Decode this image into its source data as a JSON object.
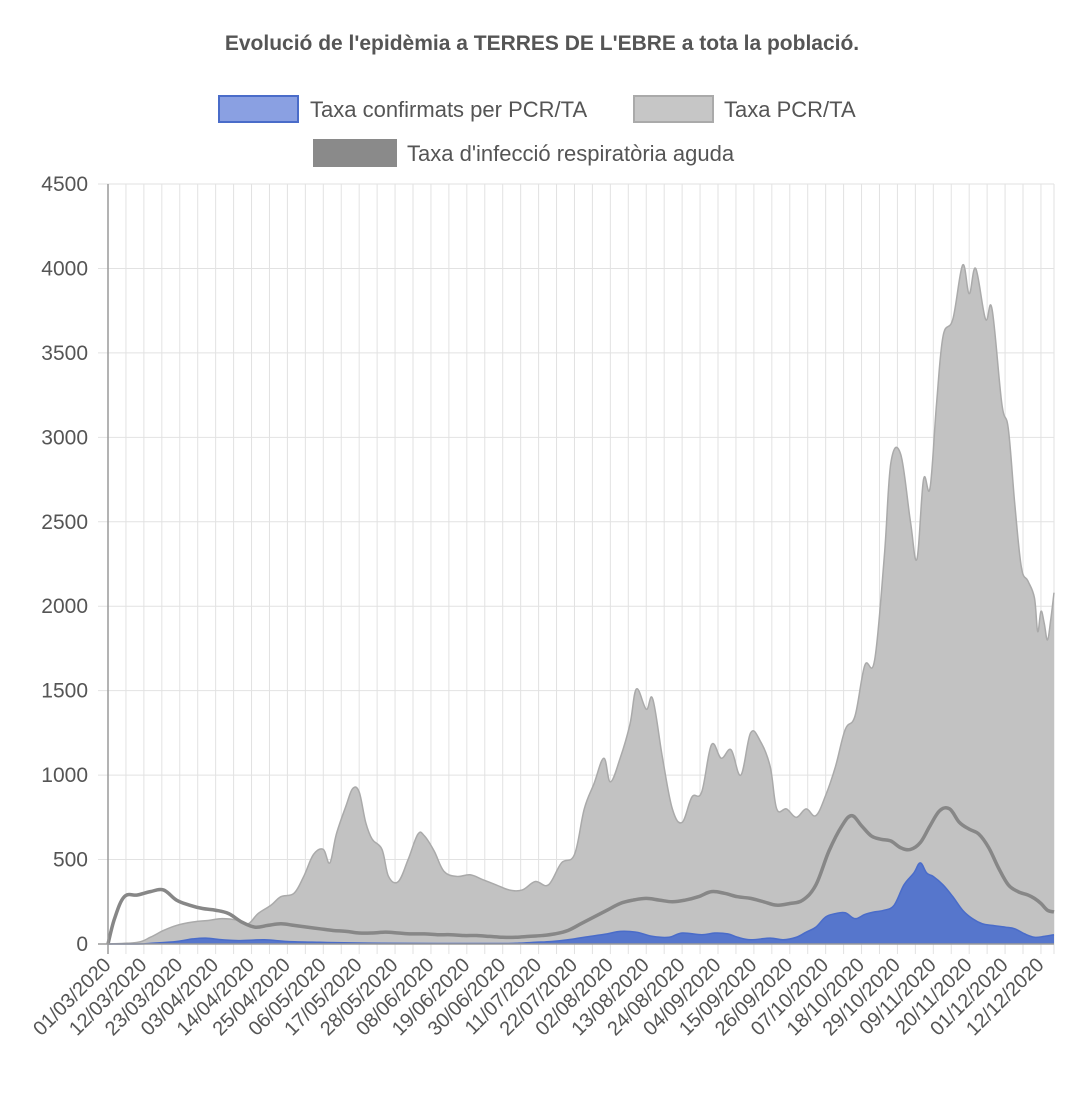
{
  "chart_data": {
    "type": "area",
    "title": "Evolució de l'epidèmia a TERRES DE L'EBRE a tota la població.",
    "xlabel": "",
    "ylabel": "",
    "ylim": [
      0,
      4500
    ],
    "y_ticks": [
      "0",
      "500",
      "1000",
      "1500",
      "2000",
      "2500",
      "3000",
      "3500",
      "4000",
      "4500"
    ],
    "x_start_date": "2020-03-01",
    "x_end_date": "2020-12-16",
    "x_tick_labels": [
      "01/03/2020",
      "12/03/2020",
      "23/03/2020",
      "03/04/2020",
      "14/04/2020",
      "25/04/2020",
      "06/05/2020",
      "17/05/2020",
      "28/05/2020",
      "08/06/2020",
      "19/06/2020",
      "30/06/2020",
      "11/07/2020",
      "22/07/2020",
      "02/08/2020",
      "13/08/2020",
      "24/08/2020",
      "04/09/2020",
      "15/09/2020",
      "26/09/2020",
      "07/10/2020",
      "18/10/2020",
      "29/10/2020",
      "09/11/2020",
      "20/11/2020",
      "01/12/2020",
      "12/12/2020"
    ],
    "grid": true,
    "legend_position": "top-center",
    "series": [
      {
        "name": "Taxa confirmats per PCR/TA",
        "kind": "area",
        "color": "#4a6cc9",
        "fill": "#5676cc",
        "legend_fill": "#8aa0e2",
        "points": [
          [
            "2020-03-01",
            0
          ],
          [
            "2020-03-10",
            0
          ],
          [
            "2020-03-15",
            5
          ],
          [
            "2020-03-22",
            15
          ],
          [
            "2020-03-27",
            30
          ],
          [
            "2020-03-31",
            35
          ],
          [
            "2020-04-05",
            25
          ],
          [
            "2020-04-10",
            20
          ],
          [
            "2020-04-18",
            25
          ],
          [
            "2020-04-25",
            15
          ],
          [
            "2020-05-05",
            10
          ],
          [
            "2020-05-20",
            5
          ],
          [
            "2020-06-10",
            3
          ],
          [
            "2020-06-30",
            3
          ],
          [
            "2020-07-05",
            5
          ],
          [
            "2020-07-10",
            10
          ],
          [
            "2020-07-15",
            15
          ],
          [
            "2020-07-20",
            25
          ],
          [
            "2020-07-25",
            40
          ],
          [
            "2020-08-01",
            60
          ],
          [
            "2020-08-05",
            75
          ],
          [
            "2020-08-10",
            70
          ],
          [
            "2020-08-15",
            45
          ],
          [
            "2020-08-20",
            40
          ],
          [
            "2020-08-24",
            65
          ],
          [
            "2020-08-30",
            55
          ],
          [
            "2020-09-03",
            65
          ],
          [
            "2020-09-07",
            60
          ],
          [
            "2020-09-10",
            40
          ],
          [
            "2020-09-14",
            25
          ],
          [
            "2020-09-20",
            35
          ],
          [
            "2020-09-24",
            25
          ],
          [
            "2020-09-28",
            40
          ],
          [
            "2020-10-01",
            70
          ],
          [
            "2020-10-04",
            100
          ],
          [
            "2020-10-07",
            160
          ],
          [
            "2020-10-10",
            180
          ],
          [
            "2020-10-13",
            185
          ],
          [
            "2020-10-16",
            150
          ],
          [
            "2020-10-19",
            175
          ],
          [
            "2020-10-22",
            190
          ],
          [
            "2020-10-25",
            200
          ],
          [
            "2020-10-28",
            230
          ],
          [
            "2020-10-31",
            350
          ],
          [
            "2020-11-03",
            420
          ],
          [
            "2020-11-05",
            480
          ],
          [
            "2020-11-07",
            420
          ],
          [
            "2020-11-09",
            400
          ],
          [
            "2020-11-12",
            350
          ],
          [
            "2020-11-15",
            280
          ],
          [
            "2020-11-18",
            200
          ],
          [
            "2020-11-21",
            150
          ],
          [
            "2020-11-24",
            120
          ],
          [
            "2020-11-27",
            110
          ],
          [
            "2020-12-01",
            100
          ],
          [
            "2020-12-04",
            90
          ],
          [
            "2020-12-07",
            60
          ],
          [
            "2020-12-10",
            40
          ],
          [
            "2020-12-13",
            45
          ],
          [
            "2020-12-16",
            55
          ]
        ]
      },
      {
        "name": "Taxa PCR/TA",
        "kind": "area",
        "color": "#aaaaaa",
        "fill": "#c2c2c2",
        "legend_fill": "#c6c6c6",
        "points": [
          [
            "2020-03-01",
            0
          ],
          [
            "2020-03-10",
            10
          ],
          [
            "2020-03-14",
            40
          ],
          [
            "2020-03-18",
            80
          ],
          [
            "2020-03-22",
            110
          ],
          [
            "2020-03-27",
            130
          ],
          [
            "2020-04-01",
            140
          ],
          [
            "2020-04-05",
            150
          ],
          [
            "2020-04-10",
            140
          ],
          [
            "2020-04-13",
            120
          ],
          [
            "2020-04-16",
            180
          ],
          [
            "2020-04-20",
            230
          ],
          [
            "2020-04-23",
            280
          ],
          [
            "2020-04-27",
            300
          ],
          [
            "2020-04-30",
            400
          ],
          [
            "2020-05-03",
            530
          ],
          [
            "2020-05-06",
            560
          ],
          [
            "2020-05-08",
            480
          ],
          [
            "2020-05-10",
            650
          ],
          [
            "2020-05-13",
            820
          ],
          [
            "2020-05-15",
            920
          ],
          [
            "2020-05-17",
            900
          ],
          [
            "2020-05-19",
            720
          ],
          [
            "2020-05-21",
            620
          ],
          [
            "2020-05-24",
            560
          ],
          [
            "2020-05-26",
            400
          ],
          [
            "2020-05-29",
            370
          ],
          [
            "2020-06-01",
            500
          ],
          [
            "2020-06-04",
            650
          ],
          [
            "2020-06-06",
            640
          ],
          [
            "2020-06-09",
            550
          ],
          [
            "2020-06-12",
            430
          ],
          [
            "2020-06-16",
            400
          ],
          [
            "2020-06-20",
            410
          ],
          [
            "2020-06-24",
            380
          ],
          [
            "2020-06-28",
            350
          ],
          [
            "2020-07-02",
            320
          ],
          [
            "2020-07-06",
            320
          ],
          [
            "2020-07-10",
            370
          ],
          [
            "2020-07-14",
            350
          ],
          [
            "2020-07-18",
            480
          ],
          [
            "2020-07-22",
            530
          ],
          [
            "2020-07-25",
            800
          ],
          [
            "2020-07-28",
            950
          ],
          [
            "2020-07-31",
            1100
          ],
          [
            "2020-08-02",
            960
          ],
          [
            "2020-08-05",
            1100
          ],
          [
            "2020-08-08",
            1300
          ],
          [
            "2020-08-10",
            1510
          ],
          [
            "2020-08-13",
            1390
          ],
          [
            "2020-08-15",
            1450
          ],
          [
            "2020-08-18",
            1100
          ],
          [
            "2020-08-21",
            800
          ],
          [
            "2020-08-24",
            720
          ],
          [
            "2020-08-27",
            870
          ],
          [
            "2020-08-30",
            900
          ],
          [
            "2020-09-02",
            1180
          ],
          [
            "2020-09-05",
            1100
          ],
          [
            "2020-09-08",
            1150
          ],
          [
            "2020-09-11",
            1000
          ],
          [
            "2020-09-14",
            1250
          ],
          [
            "2020-09-17",
            1200
          ],
          [
            "2020-09-20",
            1050
          ],
          [
            "2020-09-22",
            800
          ],
          [
            "2020-09-25",
            800
          ],
          [
            "2020-09-28",
            750
          ],
          [
            "2020-10-01",
            800
          ],
          [
            "2020-10-04",
            760
          ],
          [
            "2020-10-07",
            880
          ],
          [
            "2020-10-10",
            1050
          ],
          [
            "2020-10-13",
            1270
          ],
          [
            "2020-10-16",
            1350
          ],
          [
            "2020-10-19",
            1650
          ],
          [
            "2020-10-22",
            1680
          ],
          [
            "2020-10-25",
            2300
          ],
          [
            "2020-10-27",
            2850
          ],
          [
            "2020-10-30",
            2900
          ],
          [
            "2020-11-02",
            2500
          ],
          [
            "2020-11-04",
            2280
          ],
          [
            "2020-11-06",
            2750
          ],
          [
            "2020-11-08",
            2700
          ],
          [
            "2020-11-10",
            3200
          ],
          [
            "2020-11-12",
            3600
          ],
          [
            "2020-11-15",
            3700
          ],
          [
            "2020-11-18",
            4020
          ],
          [
            "2020-11-20",
            3850
          ],
          [
            "2020-11-22",
            4000
          ],
          [
            "2020-11-25",
            3700
          ],
          [
            "2020-11-27",
            3760
          ],
          [
            "2020-11-30",
            3200
          ],
          [
            "2020-12-02",
            3050
          ],
          [
            "2020-12-04",
            2600
          ],
          [
            "2020-12-06",
            2230
          ],
          [
            "2020-12-08",
            2150
          ],
          [
            "2020-12-10",
            2050
          ],
          [
            "2020-12-11",
            1850
          ],
          [
            "2020-12-12",
            1970
          ],
          [
            "2020-12-13",
            1900
          ],
          [
            "2020-12-14",
            1800
          ],
          [
            "2020-12-15",
            1920
          ],
          [
            "2020-12-16",
            2080
          ]
        ]
      },
      {
        "name": "Taxa d'infecció respiratòria aguda",
        "kind": "line",
        "color": "#878787",
        "fill": "#878787",
        "legend_fill": "#8a8a8a",
        "points": [
          [
            "2020-03-01",
            0
          ],
          [
            "2020-03-03",
            150
          ],
          [
            "2020-03-06",
            280
          ],
          [
            "2020-03-10",
            290
          ],
          [
            "2020-03-14",
            310
          ],
          [
            "2020-03-18",
            320
          ],
          [
            "2020-03-22",
            260
          ],
          [
            "2020-03-26",
            230
          ],
          [
            "2020-03-30",
            210
          ],
          [
            "2020-04-03",
            200
          ],
          [
            "2020-04-07",
            180
          ],
          [
            "2020-04-11",
            130
          ],
          [
            "2020-04-15",
            100
          ],
          [
            "2020-04-19",
            110
          ],
          [
            "2020-04-23",
            120
          ],
          [
            "2020-04-27",
            110
          ],
          [
            "2020-05-01",
            100
          ],
          [
            "2020-05-05",
            90
          ],
          [
            "2020-05-09",
            80
          ],
          [
            "2020-05-13",
            75
          ],
          [
            "2020-05-17",
            65
          ],
          [
            "2020-05-21",
            65
          ],
          [
            "2020-05-25",
            70
          ],
          [
            "2020-05-29",
            65
          ],
          [
            "2020-06-02",
            60
          ],
          [
            "2020-06-06",
            60
          ],
          [
            "2020-06-10",
            55
          ],
          [
            "2020-06-14",
            55
          ],
          [
            "2020-06-18",
            50
          ],
          [
            "2020-06-22",
            50
          ],
          [
            "2020-06-26",
            45
          ],
          [
            "2020-06-30",
            40
          ],
          [
            "2020-07-04",
            40
          ],
          [
            "2020-07-08",
            45
          ],
          [
            "2020-07-12",
            50
          ],
          [
            "2020-07-16",
            60
          ],
          [
            "2020-07-20",
            80
          ],
          [
            "2020-07-24",
            120
          ],
          [
            "2020-07-28",
            160
          ],
          [
            "2020-08-01",
            200
          ],
          [
            "2020-08-05",
            240
          ],
          [
            "2020-08-09",
            260
          ],
          [
            "2020-08-13",
            270
          ],
          [
            "2020-08-17",
            260
          ],
          [
            "2020-08-21",
            250
          ],
          [
            "2020-08-25",
            260
          ],
          [
            "2020-08-29",
            280
          ],
          [
            "2020-09-02",
            310
          ],
          [
            "2020-09-06",
            300
          ],
          [
            "2020-09-10",
            280
          ],
          [
            "2020-09-14",
            270
          ],
          [
            "2020-09-18",
            250
          ],
          [
            "2020-09-22",
            230
          ],
          [
            "2020-09-26",
            240
          ],
          [
            "2020-09-30",
            260
          ],
          [
            "2020-10-04",
            350
          ],
          [
            "2020-10-08",
            550
          ],
          [
            "2020-10-12",
            700
          ],
          [
            "2020-10-15",
            760
          ],
          [
            "2020-10-18",
            700
          ],
          [
            "2020-10-21",
            640
          ],
          [
            "2020-10-24",
            620
          ],
          [
            "2020-10-27",
            610
          ],
          [
            "2020-10-30",
            570
          ],
          [
            "2020-11-02",
            560
          ],
          [
            "2020-11-05",
            600
          ],
          [
            "2020-11-08",
            700
          ],
          [
            "2020-11-11",
            790
          ],
          [
            "2020-11-14",
            800
          ],
          [
            "2020-11-17",
            720
          ],
          [
            "2020-11-20",
            680
          ],
          [
            "2020-11-23",
            650
          ],
          [
            "2020-11-26",
            570
          ],
          [
            "2020-11-29",
            450
          ],
          [
            "2020-12-02",
            350
          ],
          [
            "2020-12-05",
            310
          ],
          [
            "2020-12-08",
            290
          ],
          [
            "2020-12-10",
            270
          ],
          [
            "2020-12-12",
            240
          ],
          [
            "2020-12-14",
            200
          ],
          [
            "2020-12-16",
            190
          ]
        ]
      }
    ]
  }
}
